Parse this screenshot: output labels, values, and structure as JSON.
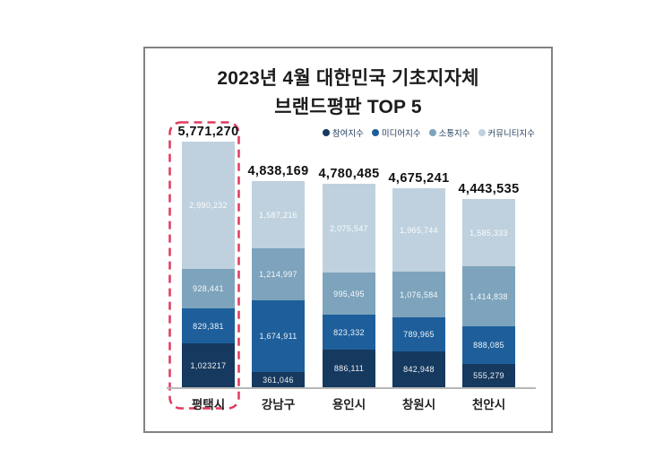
{
  "title": {
    "line1": "2023년 4월 대한민국 기초지자체",
    "line2": "브랜드평판 TOP 5"
  },
  "legend": [
    {
      "label": "참여지수",
      "color": "#16395f"
    },
    {
      "label": "미디어지수",
      "color": "#1e5f9b"
    },
    {
      "label": "소통지수",
      "color": "#7da4bc"
    },
    {
      "label": "커뮤니티지수",
      "color": "#bfd1de"
    }
  ],
  "highlight": {
    "category": "평택시",
    "color": "#e03a5e",
    "style": "dashed rounded rectangle around first bar"
  },
  "chart_data": {
    "type": "bar",
    "stacked": true,
    "title": "2023년 4월 대한민국 기초지자체 브랜드평판 TOP 5",
    "legend_position": "top-right",
    "grid": false,
    "axis_max_value": 5771270,
    "categories": [
      "평택시",
      "강남구",
      "용인시",
      "창원시",
      "천안시"
    ],
    "totals": [
      5771270,
      4838169,
      4780485,
      4675241,
      4443535
    ],
    "series": [
      {
        "name": "참여지수",
        "color": "#16395f",
        "values": [
          1023217,
          361046,
          886111,
          842948,
          555279
        ]
      },
      {
        "name": "미디어지수",
        "color": "#1e5f9b",
        "values": [
          829381,
          1674911,
          823332,
          789965,
          888085
        ]
      },
      {
        "name": "소통지수",
        "color": "#7da4bc",
        "values": [
          928441,
          1214997,
          995495,
          1076584,
          1414838
        ]
      },
      {
        "name": "커뮤니티지수",
        "color": "#bfd1de",
        "values": [
          2990232,
          1587216,
          2075547,
          1965744,
          1585333
        ]
      }
    ],
    "bars": [
      {
        "category": "평택시",
        "total_label": "5,771,270",
        "highlighted": true,
        "segments_top_to_bottom": [
          {
            "series": "커뮤니티지수",
            "value": 2990232,
            "label": "2,990,232"
          },
          {
            "series": "소통지수",
            "value": 928441,
            "label": "928,441"
          },
          {
            "series": "미디어지수",
            "value": 829381,
            "label": "829,381"
          },
          {
            "series": "참여지수",
            "value": 1023217,
            "label": "1,023217"
          }
        ]
      },
      {
        "category": "강남구",
        "total_label": "4,838,169",
        "highlighted": false,
        "segments_top_to_bottom": [
          {
            "series": "커뮤니티지수",
            "value": 1587216,
            "label": "1,587,216"
          },
          {
            "series": "소통지수",
            "value": 1214997,
            "label": "1,214,997"
          },
          {
            "series": "미디어지수",
            "value": 1674911,
            "label": "1,674,911"
          },
          {
            "series": "참여지수",
            "value": 361046,
            "label": "361,046"
          }
        ]
      },
      {
        "category": "용인시",
        "total_label": "4,780,485",
        "highlighted": false,
        "segments_top_to_bottom": [
          {
            "series": "커뮤니티지수",
            "value": 2075547,
            "label": "2,075,547"
          },
          {
            "series": "소통지수",
            "value": 995495,
            "label": "995,495"
          },
          {
            "series": "미디어지수",
            "value": 823332,
            "label": "823,332"
          },
          {
            "series": "참여지수",
            "value": 886111,
            "label": "886,111"
          }
        ]
      },
      {
        "category": "창원시",
        "total_label": "4,675,241",
        "highlighted": false,
        "segments_top_to_bottom": [
          {
            "series": "커뮤니티지수",
            "value": 1965744,
            "label": "1,965,744"
          },
          {
            "series": "소통지수",
            "value": 1076584,
            "label": "1,076,584"
          },
          {
            "series": "미디어지수",
            "value": 789965,
            "label": "789,965"
          },
          {
            "series": "참여지수",
            "value": 842948,
            "label": "842,948"
          }
        ]
      },
      {
        "category": "천안시",
        "total_label": "4,443,535",
        "highlighted": false,
        "segments_top_to_bottom": [
          {
            "series": "커뮤니티지수",
            "value": 1585333,
            "label": "1,585,333"
          },
          {
            "series": "소통지수",
            "value": 1414838,
            "label": "1,414,838"
          },
          {
            "series": "미디어지수",
            "value": 888085,
            "label": "888,085"
          },
          {
            "series": "참여지수",
            "value": 555279,
            "label": "555,279"
          }
        ]
      }
    ]
  }
}
